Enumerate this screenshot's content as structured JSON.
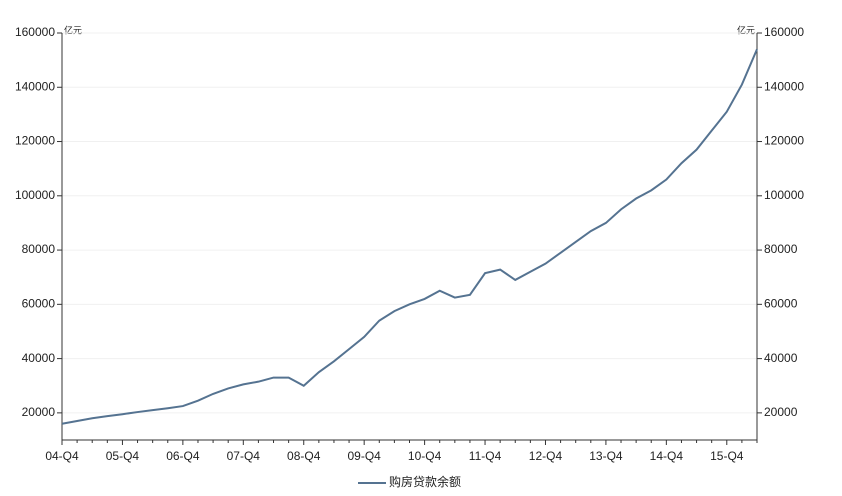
{
  "chart_data": {
    "type": "line",
    "y_unit_left": "亿元",
    "y_unit_right": "亿元",
    "categories": [
      "04-Q4",
      null,
      null,
      null,
      "05-Q4",
      null,
      null,
      null,
      "06-Q4",
      null,
      null,
      null,
      "07-Q4",
      null,
      null,
      null,
      "08-Q4",
      null,
      null,
      null,
      "09-Q4",
      null,
      null,
      null,
      "10-Q4",
      null,
      null,
      null,
      "11-Q4",
      null,
      null,
      null,
      "12-Q4",
      null,
      null,
      null,
      "13-Q4",
      null,
      null,
      null,
      "14-Q4",
      null,
      null,
      null,
      "15-Q4",
      null,
      null
    ],
    "series": [
      {
        "name": "购房贷款余额",
        "color": "#557391",
        "values": [
          16000,
          17000,
          18000,
          18800,
          19500,
          20300,
          21000,
          21700,
          22500,
          24500,
          27000,
          29000,
          30500,
          31500,
          33000,
          33000,
          30000,
          35000,
          39000,
          43500,
          48000,
          54000,
          57500,
          60000,
          62000,
          65000,
          62500,
          63500,
          71500,
          72800,
          69000,
          72000,
          75000,
          79000,
          83000,
          87000,
          90000,
          95000,
          99000,
          102000,
          106000,
          112000,
          117000,
          124000,
          131000,
          141000,
          154000
        ]
      }
    ],
    "ylim": [
      10000,
      160000
    ],
    "yticks": [
      20000,
      40000,
      60000,
      80000,
      100000,
      120000,
      140000,
      160000
    ],
    "y2lim": [
      10000,
      160000
    ],
    "y2ticks": [
      20000,
      40000,
      60000,
      80000,
      100000,
      120000,
      140000,
      160000
    ],
    "grid": true,
    "legend": "bottom"
  }
}
